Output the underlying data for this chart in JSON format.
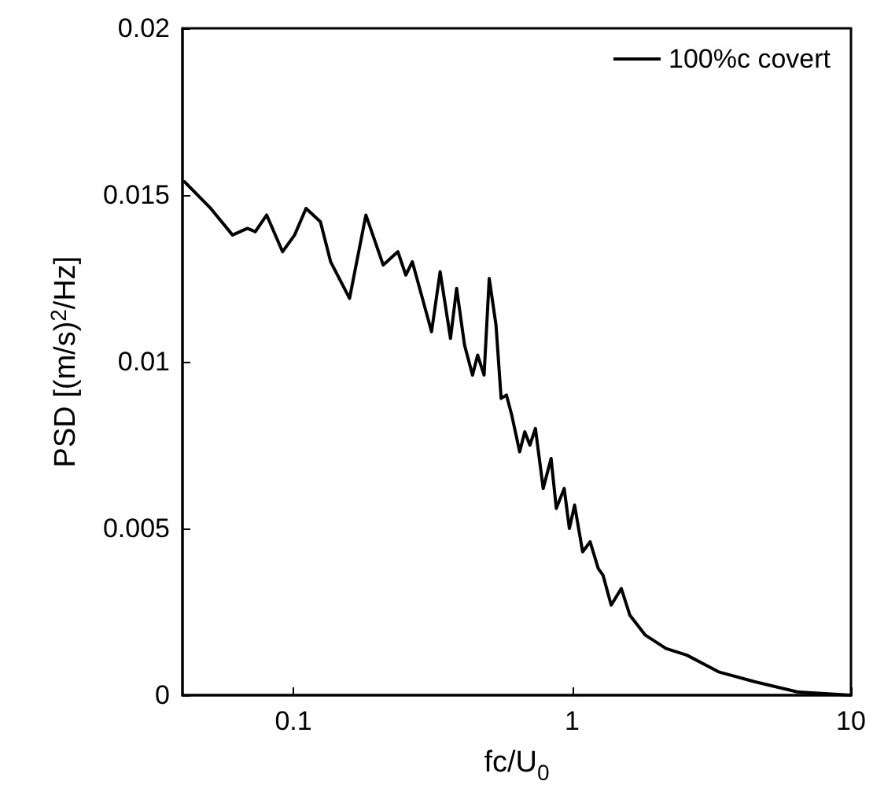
{
  "chart_data": {
    "type": "line",
    "xlabel": "fc/U$_{0}$",
    "ylabel": "PSD [(m/s)$^{2}$/Hz]",
    "log": "x",
    "xlim": [
      0.04,
      10
    ],
    "xticks": [
      0.1,
      1,
      10
    ],
    "ylim": [
      0,
      0.02
    ],
    "yticks": [
      0,
      0.005,
      0.01,
      0.015,
      0.02
    ],
    "grid": false,
    "legend": "top right",
    "marker": "none",
    "line_style": "solid",
    "series": [
      {
        "name": "100%c covert",
        "color": "#000000",
        "x": [
          0.0407,
          0.0505,
          0.0605,
          0.0684,
          0.073,
          0.0802,
          0.0914,
          0.101,
          0.111,
          0.125,
          0.136,
          0.159,
          0.182,
          0.21,
          0.237,
          0.253,
          0.267,
          0.313,
          0.336,
          0.366,
          0.385,
          0.411,
          0.439,
          0.458,
          0.483,
          0.504,
          0.533,
          0.556,
          0.581,
          0.607,
          0.648,
          0.676,
          0.705,
          0.738,
          0.787,
          0.84,
          0.877,
          0.936,
          0.977,
          1.02,
          1.09,
          1.16,
          1.24,
          1.29,
          1.38,
          1.5,
          1.61,
          1.83,
          2.17,
          2.58,
          3.35,
          4.53,
          6.41,
          10
        ],
        "values": [
          0.0154,
          0.0146,
          0.0138,
          0.014,
          0.0139,
          0.0144,
          0.0133,
          0.0138,
          0.0146,
          0.0142,
          0.013,
          0.0119,
          0.0144,
          0.0129,
          0.0133,
          0.0126,
          0.013,
          0.0109,
          0.0127,
          0.0107,
          0.0122,
          0.0105,
          0.0096,
          0.0102,
          0.0096,
          0.0125,
          0.0111,
          0.0089,
          0.009,
          0.0084,
          0.0073,
          0.0079,
          0.0075,
          0.008,
          0.0062,
          0.0071,
          0.0056,
          0.0062,
          0.005,
          0.0057,
          0.0043,
          0.0046,
          0.0038,
          0.0036,
          0.0027,
          0.0032,
          0.0024,
          0.0018,
          0.0014,
          0.0012,
          0.0007,
          0.0004,
          0.0001,
          0.0
        ]
      }
    ]
  }
}
